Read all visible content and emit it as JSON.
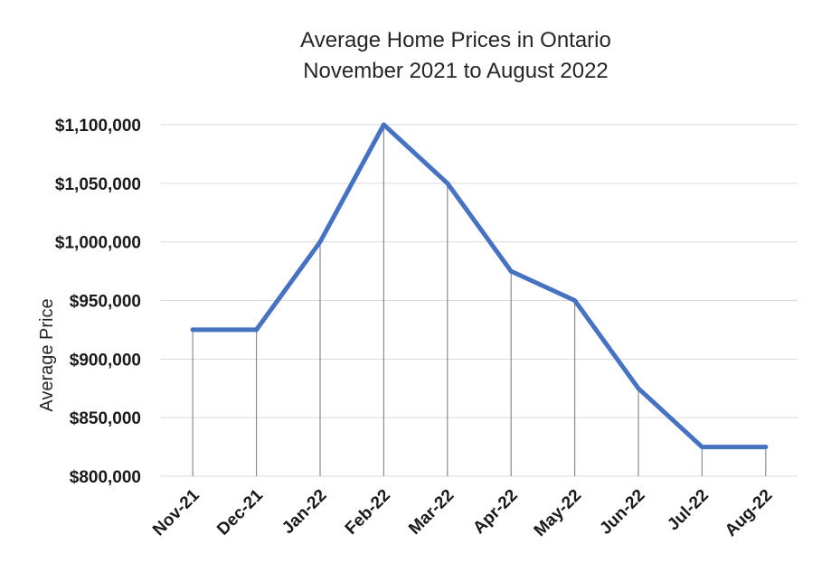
{
  "chart_data": {
    "type": "line",
    "title": "Average Home Prices in Ontario",
    "subtitle": "November 2021 to August 2022",
    "xlabel": "",
    "ylabel": "Average Price",
    "categories": [
      "Nov-21",
      "Dec-21",
      "Jan-22",
      "Feb-22",
      "Mar-22",
      "Apr-22",
      "May-22",
      "Jun-22",
      "Jul-22",
      "Aug-22"
    ],
    "series": [
      {
        "values": [
          925000,
          925000,
          1000000,
          1100000,
          1050000,
          975000,
          950000,
          875000,
          825000,
          825000
        ],
        "color": "#4472C4"
      }
    ],
    "ylim": [
      800000,
      1100000
    ],
    "yticks": [
      800000,
      850000,
      900000,
      950000,
      1000000,
      1050000,
      1100000
    ],
    "ytick_labels": [
      "$800,000",
      "$850,000",
      "$900,000",
      "$950,000",
      "$1,000,000",
      "$1,050,000",
      "$1,100,000"
    ],
    "grid": true,
    "drop_lines": true,
    "legend": "none"
  }
}
